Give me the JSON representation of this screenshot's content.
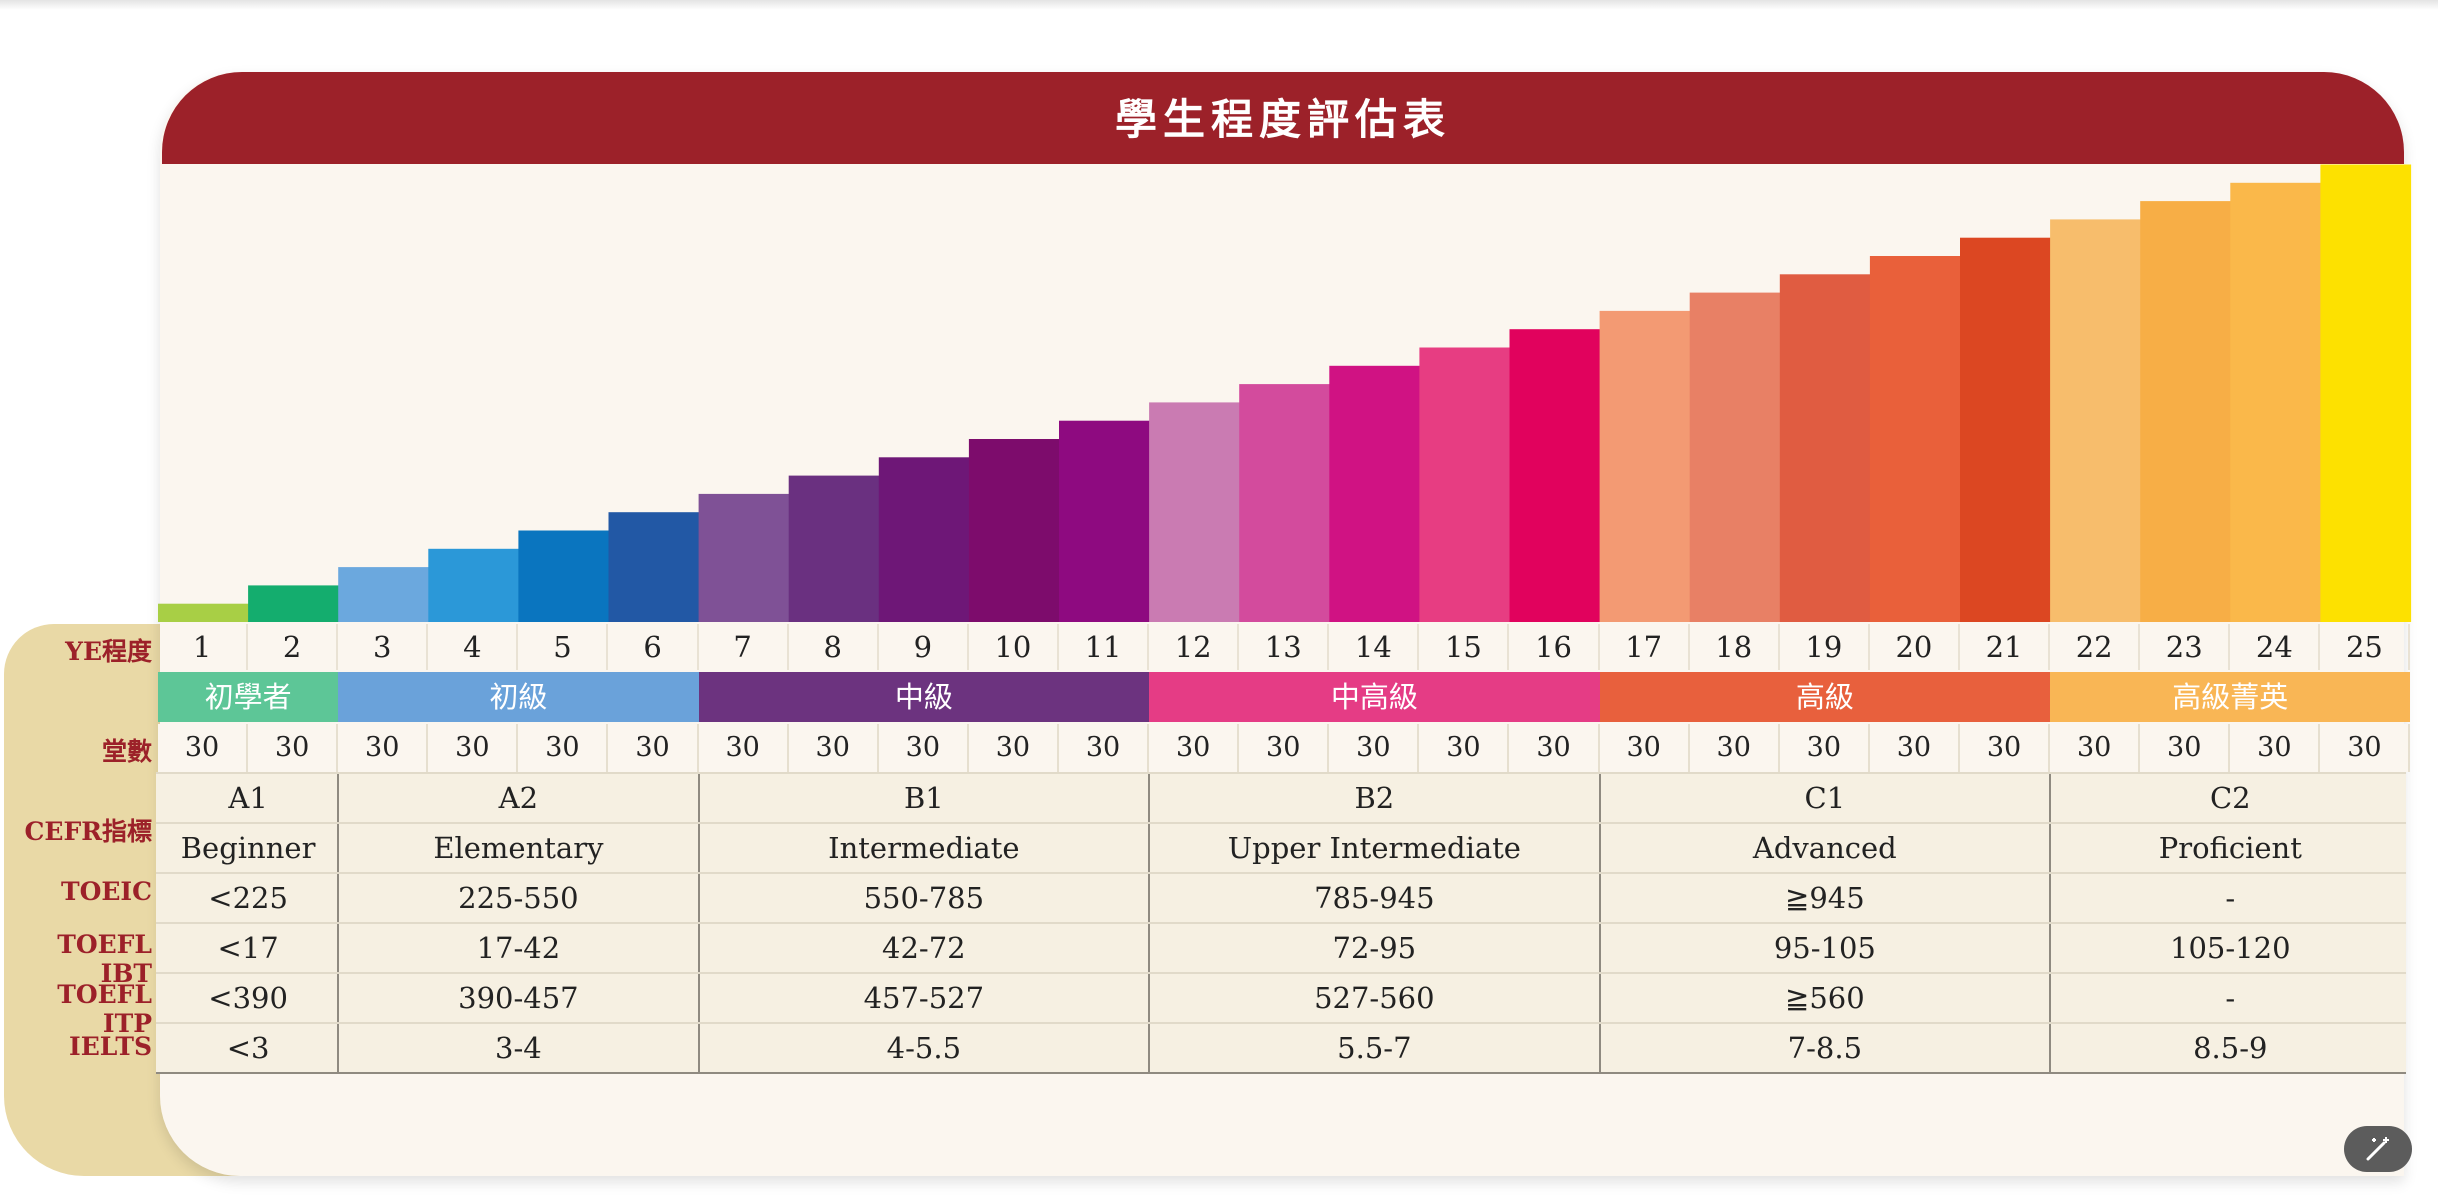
{
  "title": "學生程度評估表",
  "row_labels": {
    "level": "YE程度",
    "classes": "堂數",
    "cefr": "CEFR指標",
    "toeic": "TOEIC",
    "toefl_ibt": "TOEFL IBT",
    "toefl_itp": "TOEFL ITP",
    "ielts": "IELTS"
  },
  "chart_data": {
    "type": "bar",
    "categories": [
      "1",
      "2",
      "3",
      "4",
      "5",
      "6",
      "7",
      "8",
      "9",
      "10",
      "11",
      "12",
      "13",
      "14",
      "15",
      "16",
      "17",
      "18",
      "19",
      "20",
      "21",
      "22",
      "23",
      "24",
      "25"
    ],
    "values": [
      1,
      2,
      3,
      4,
      5,
      6,
      7,
      8,
      9,
      10,
      11,
      12,
      13,
      14,
      15,
      16,
      17,
      18,
      19,
      20,
      21,
      22,
      23,
      24,
      25
    ],
    "colors": [
      "#a8cf45",
      "#14ad6e",
      "#6ba8de",
      "#2b98d8",
      "#0a75bf",
      "#2258a5",
      "#7f5196",
      "#6a3080",
      "#6e1777",
      "#7d0c6c",
      "#8e0a80",
      "#ca7bb2",
      "#d34b9d",
      "#d01283",
      "#e73d82",
      "#e1025d",
      "#f39a73",
      "#e88065",
      "#e05c41",
      "#e9603a",
      "#dc4722",
      "#f7bd6c",
      "#f7ae46",
      "#fab84a",
      "#fde100"
    ]
  },
  "classes": [
    30,
    30,
    30,
    30,
    30,
    30,
    30,
    30,
    30,
    30,
    30,
    30,
    30,
    30,
    30,
    30,
    30,
    30,
    30,
    30,
    30,
    30,
    30,
    30,
    30
  ],
  "groups": [
    {
      "name": "初學者",
      "color": "#5dc697",
      "cefr": "A1",
      "desc": "Beginner",
      "toeic": "<225",
      "toefl_ibt": "<17",
      "toefl_itp": "<390",
      "ielts": "<3"
    },
    {
      "name": "初級",
      "color": "#6aa2da",
      "cefr": "A2",
      "desc": "Elementary",
      "toeic": "225-550",
      "toefl_ibt": "17-42",
      "toefl_itp": "390-457",
      "ielts": "3-4"
    },
    {
      "name": "中級",
      "color": "#6c337f",
      "cefr": "B1",
      "desc": "Intermediate",
      "toeic": "550-785",
      "toefl_ibt": "42-72",
      "toefl_itp": "457-527",
      "ielts": "4-5.5"
    },
    {
      "name": "中高級",
      "color": "#e53c85",
      "cefr": "B2",
      "desc": "Upper Intermediate",
      "toeic": "785-945",
      "toefl_ibt": "72-95",
      "toefl_itp": "527-560",
      "ielts": "5.5-7"
    },
    {
      "name": "高級",
      "color": "#e8603d",
      "cefr": "C1",
      "desc": "Advanced",
      "toeic": "≧945",
      "toefl_ibt": "95-105",
      "toefl_itp": "≧560",
      "ielts": "7-8.5"
    },
    {
      "name": "高級菁英",
      "color": "#f9b655",
      "cefr": "C2",
      "desc": "Proficient",
      "toeic": "-",
      "toefl_ibt": "105-120",
      "toefl_itp": "-",
      "ielts": "8.5-9"
    }
  ],
  "edit_icon": "magic-wand-icon"
}
